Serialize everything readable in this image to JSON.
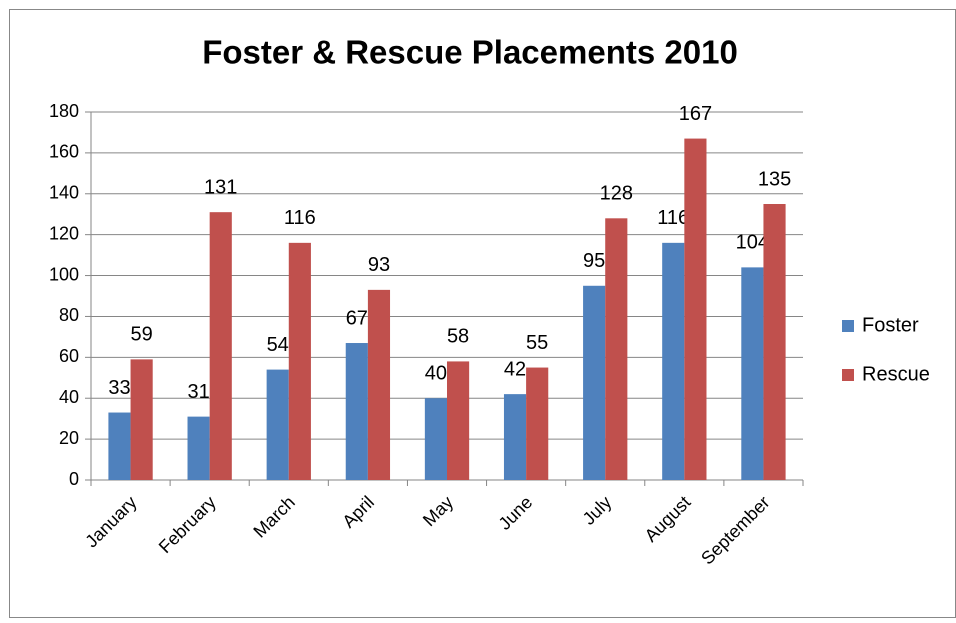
{
  "chart_data": {
    "type": "bar",
    "title": "Foster & Rescue Placements 2010",
    "categories": [
      "January",
      "February",
      "March",
      "April",
      "May",
      "June",
      "July",
      "August",
      "September"
    ],
    "series": [
      {
        "name": "Foster",
        "color": "#4f81bd",
        "values": [
          33,
          31,
          54,
          67,
          40,
          42,
          95,
          116,
          104
        ]
      },
      {
        "name": "Rescue",
        "color": "#c0504d",
        "values": [
          59,
          131,
          116,
          93,
          58,
          55,
          128,
          167,
          135
        ]
      }
    ],
    "ylim": [
      0,
      180
    ],
    "yticks": [
      0,
      20,
      40,
      60,
      80,
      100,
      120,
      140,
      160,
      180
    ],
    "grid": true,
    "legend": "right"
  }
}
